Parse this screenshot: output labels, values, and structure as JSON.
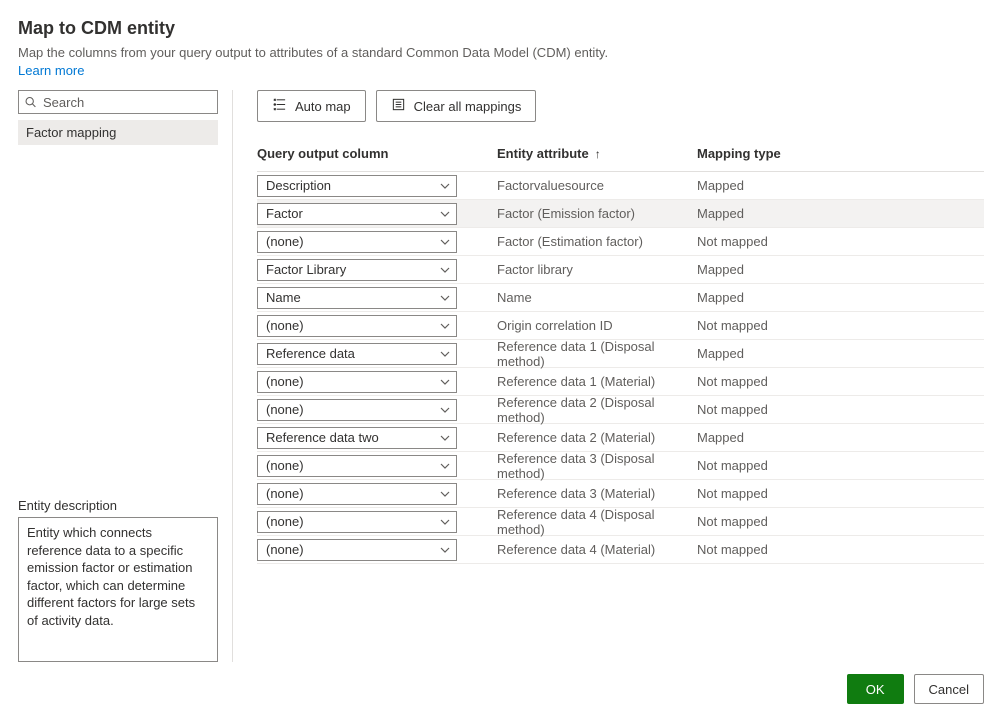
{
  "colors": {
    "text": "#323130",
    "subtext": "#605e5c",
    "link": "#0078d4",
    "border": "#8a8886",
    "row_border": "#edebe9",
    "selected_row_bg": "#f3f2f1",
    "sidebar_item_bg": "#edebe9",
    "ok_bg": "#107c10",
    "ok_text": "#ffffff",
    "background": "#ffffff"
  },
  "header": {
    "title": "Map to CDM entity",
    "subtitle": "Map the columns from your query output to attributes of a standard Common Data Model (CDM) entity.",
    "learn_more": "Learn more"
  },
  "sidebar": {
    "search_placeholder": "Search",
    "items": [
      "Factor mapping"
    ],
    "entity_description_label": "Entity description",
    "entity_description": "Entity which connects reference data to a specific emission factor or estimation factor, which can determine different factors for large sets of activity data."
  },
  "toolbar": {
    "auto_map": "Auto map",
    "clear_all": "Clear all mappings"
  },
  "table": {
    "headers": {
      "query_output_column": "Query output column",
      "entity_attribute": "Entity attribute",
      "mapping_type": "Mapping type"
    },
    "sort_column": "entity_attribute",
    "sort_direction": "asc",
    "none_label": "(none)",
    "selected_row_index": 1,
    "rows": [
      {
        "query": "Description",
        "attr": "Factorvaluesource",
        "type": "Mapped"
      },
      {
        "query": "Factor",
        "attr": "Factor (Emission factor)",
        "type": "Mapped"
      },
      {
        "query": "(none)",
        "attr": "Factor (Estimation factor)",
        "type": "Not mapped"
      },
      {
        "query": "Factor Library",
        "attr": "Factor library",
        "type": "Mapped"
      },
      {
        "query": "Name",
        "attr": "Name",
        "type": "Mapped"
      },
      {
        "query": "(none)",
        "attr": "Origin correlation ID",
        "type": "Not mapped"
      },
      {
        "query": "Reference data",
        "attr": "Reference data 1 (Disposal method)",
        "type": "Mapped"
      },
      {
        "query": "(none)",
        "attr": "Reference data 1 (Material)",
        "type": "Not mapped"
      },
      {
        "query": "(none)",
        "attr": "Reference data 2 (Disposal method)",
        "type": "Not mapped"
      },
      {
        "query": "Reference data two",
        "attr": "Reference data 2 (Material)",
        "type": "Mapped"
      },
      {
        "query": "(none)",
        "attr": "Reference data 3 (Disposal method)",
        "type": "Not mapped"
      },
      {
        "query": "(none)",
        "attr": "Reference data 3 (Material)",
        "type": "Not mapped"
      },
      {
        "query": "(none)",
        "attr": "Reference data 4 (Disposal method)",
        "type": "Not mapped"
      },
      {
        "query": "(none)",
        "attr": "Reference data 4 (Material)",
        "type": "Not mapped"
      }
    ]
  },
  "footer": {
    "ok": "OK",
    "cancel": "Cancel"
  }
}
